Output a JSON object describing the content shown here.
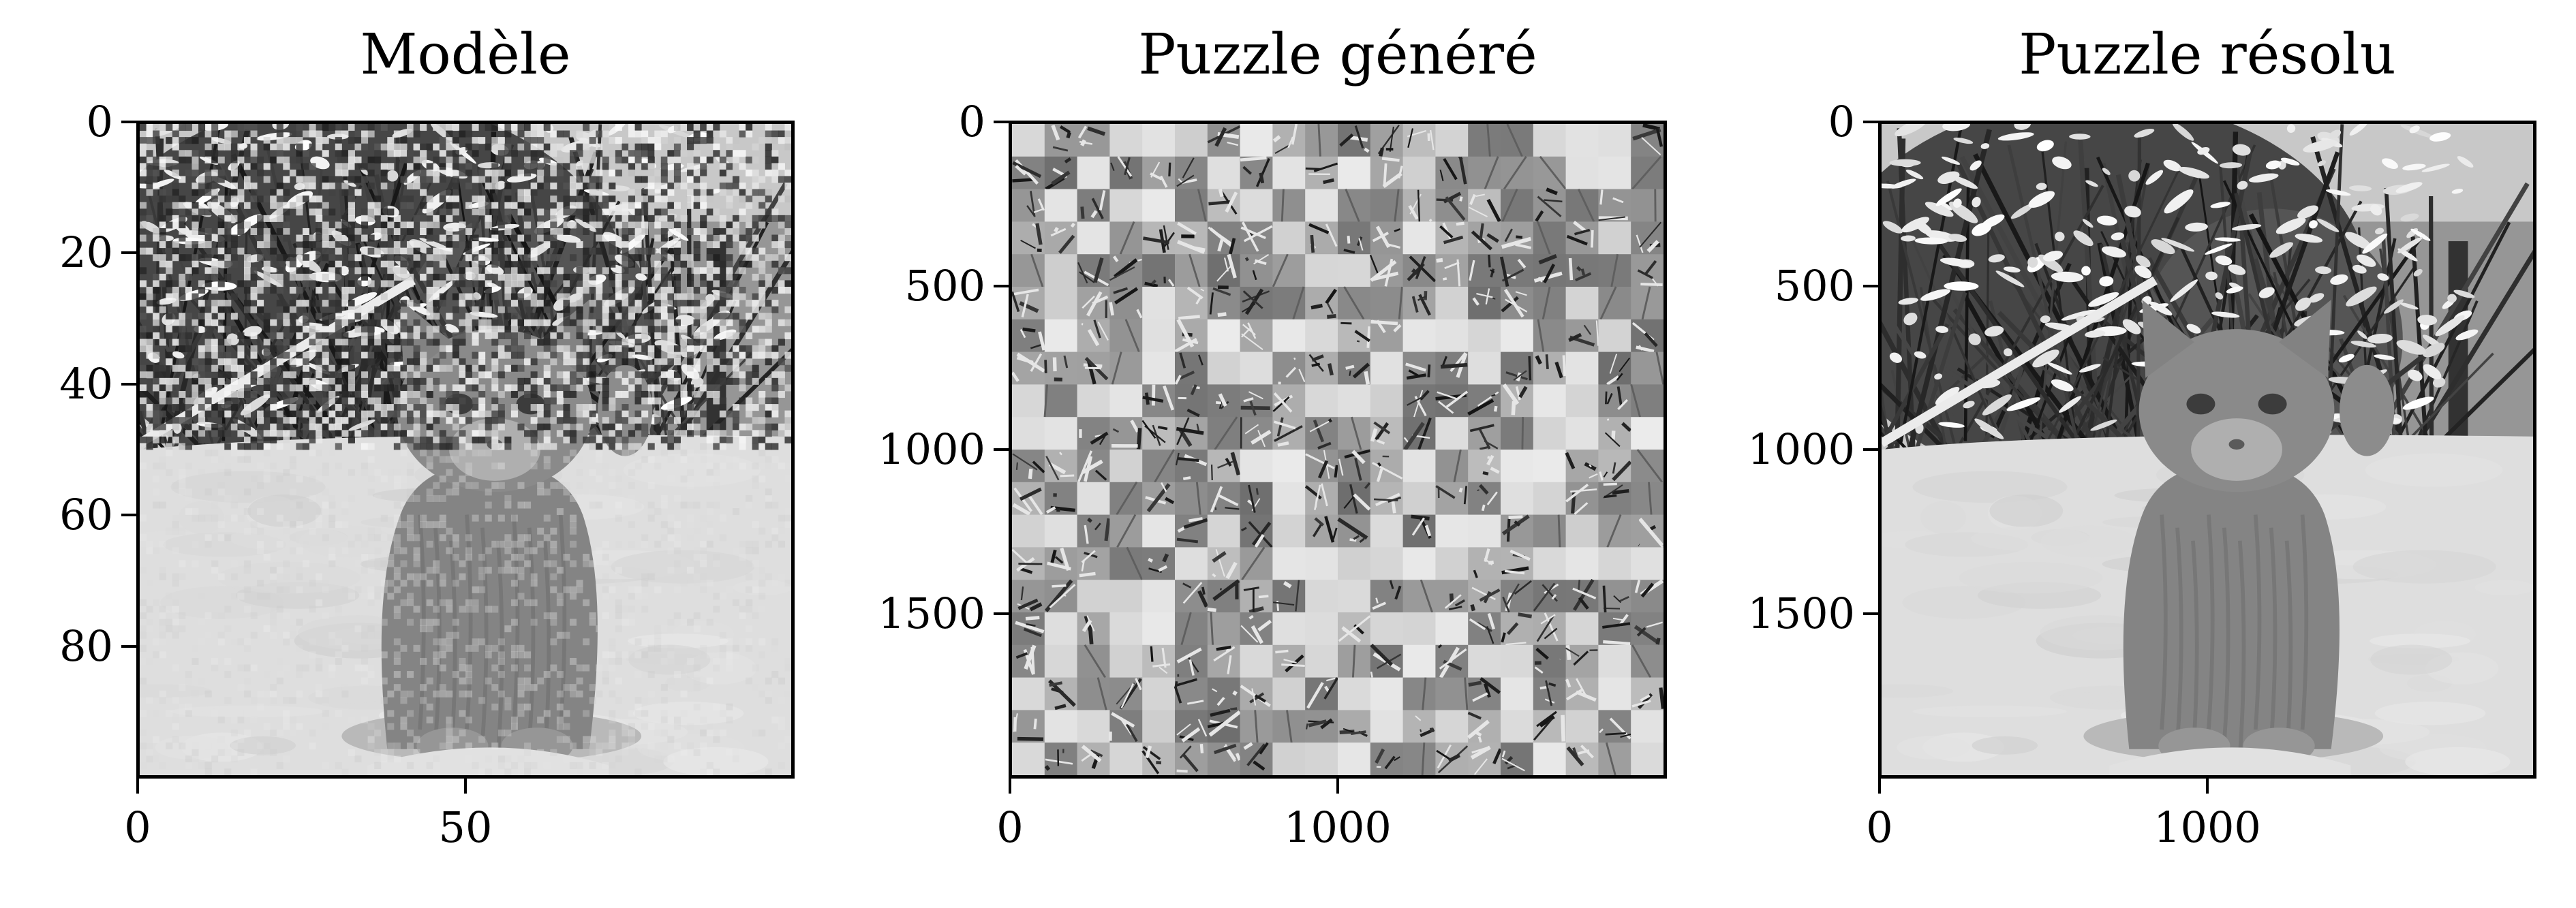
{
  "panels": [
    {
      "title": "Modèle",
      "image": "pixelated-cat-in-snow",
      "y_ticks": [
        "0",
        "20",
        "40",
        "60",
        "80"
      ],
      "x_ticks": [
        "0",
        "50"
      ]
    },
    {
      "title": "Puzzle généré",
      "image": "scrambled-puzzle-tiles",
      "y_ticks": [
        "0",
        "500",
        "1000",
        "1500"
      ],
      "x_ticks": [
        "0",
        "1000"
      ]
    },
    {
      "title": "Puzzle résolu",
      "image": "cat-in-snow",
      "y_ticks": [
        "0",
        "500",
        "1000",
        "1500"
      ],
      "x_ticks": [
        "0",
        "1000"
      ]
    }
  ],
  "colors": {
    "colormap": "grayscale",
    "frame": "#000000"
  }
}
